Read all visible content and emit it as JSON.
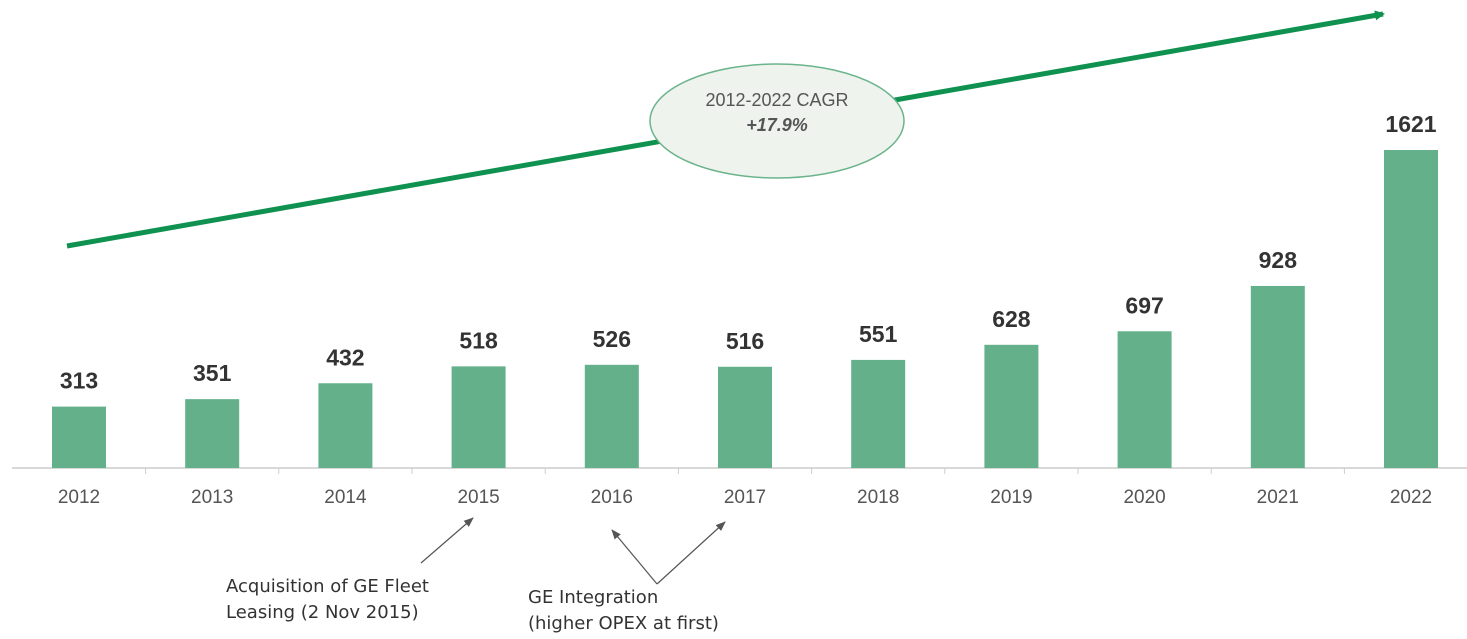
{
  "chart_data": {
    "type": "bar",
    "categories": [
      "2012",
      "2013",
      "2014",
      "2015",
      "2016",
      "2017",
      "2018",
      "2019",
      "2020",
      "2021",
      "2022"
    ],
    "values": [
      313,
      351,
      432,
      518,
      526,
      516,
      551,
      628,
      697,
      928,
      1621
    ],
    "color": "#63b08a",
    "trend_color": "#0f9150",
    "cagr": {
      "label": "2012-2022 CAGR",
      "value": "+17.9%"
    },
    "annotations": [
      {
        "lines": [
          "Acquisition of GE Fleet",
          "Leasing (2 Nov 2015)"
        ]
      },
      {
        "lines": [
          "GE Integration",
          "(higher OPEX at first)"
        ]
      }
    ]
  }
}
